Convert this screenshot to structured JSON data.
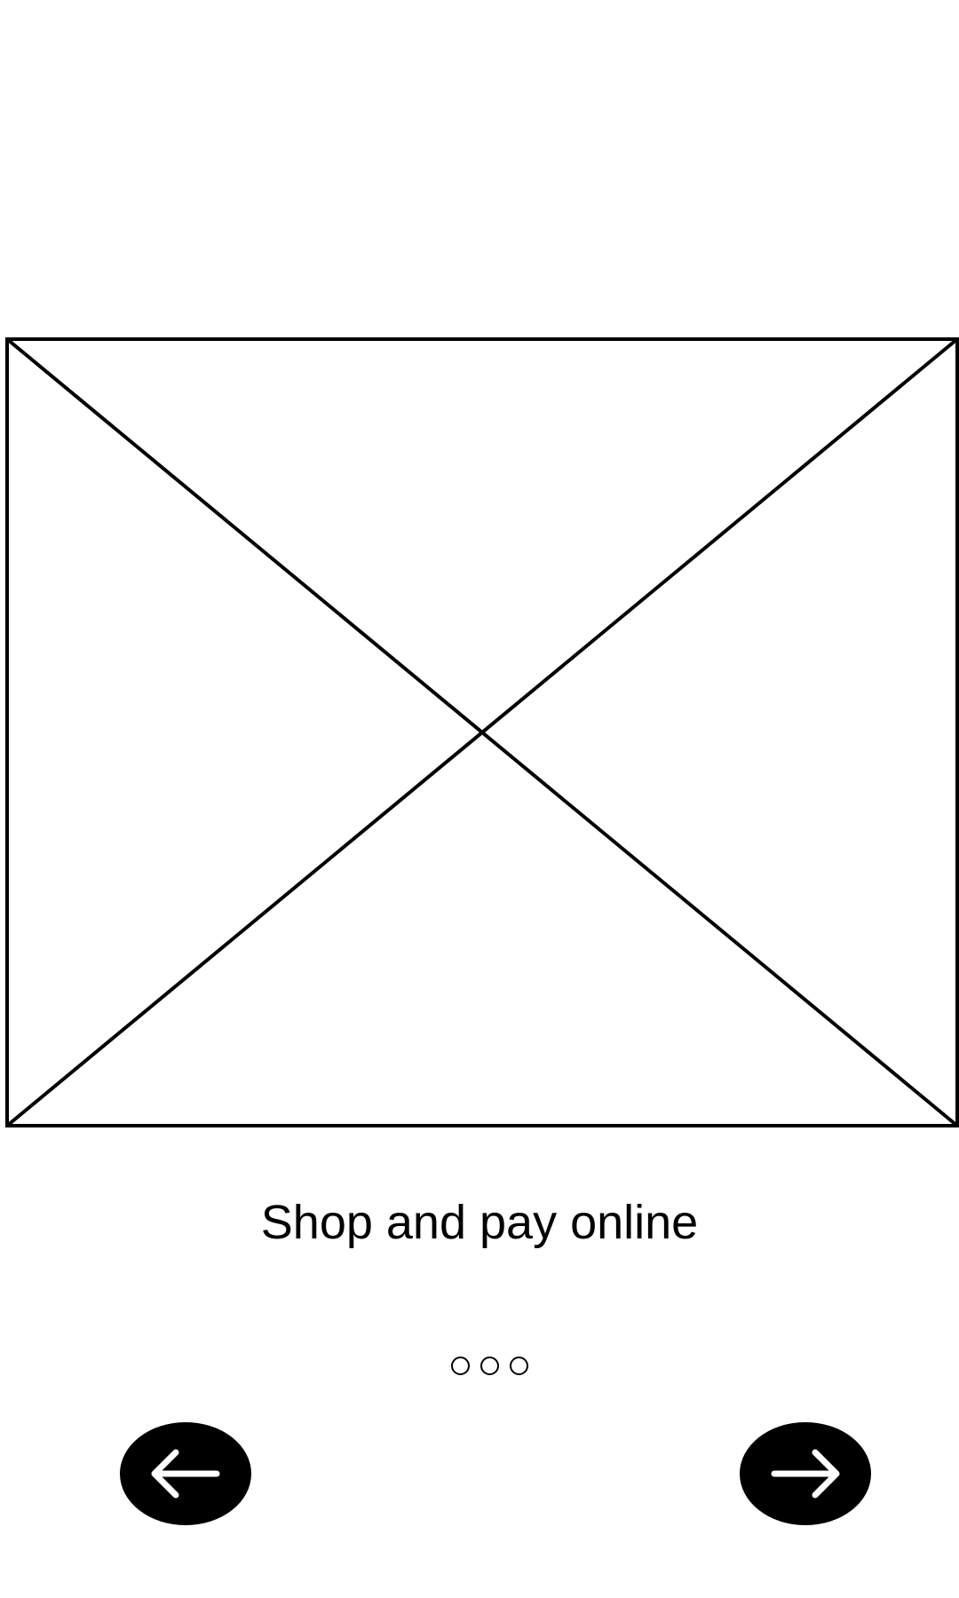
{
  "onboarding": {
    "slide": {
      "caption": "Shop and pay online",
      "image_placeholder": "image-placeholder"
    },
    "pager": {
      "total": 3
    },
    "navigation": {
      "prev_icon": "arrow-left-icon",
      "next_icon": "arrow-right-icon"
    }
  },
  "colors": {
    "background": "#ffffff",
    "foreground": "#000000"
  }
}
